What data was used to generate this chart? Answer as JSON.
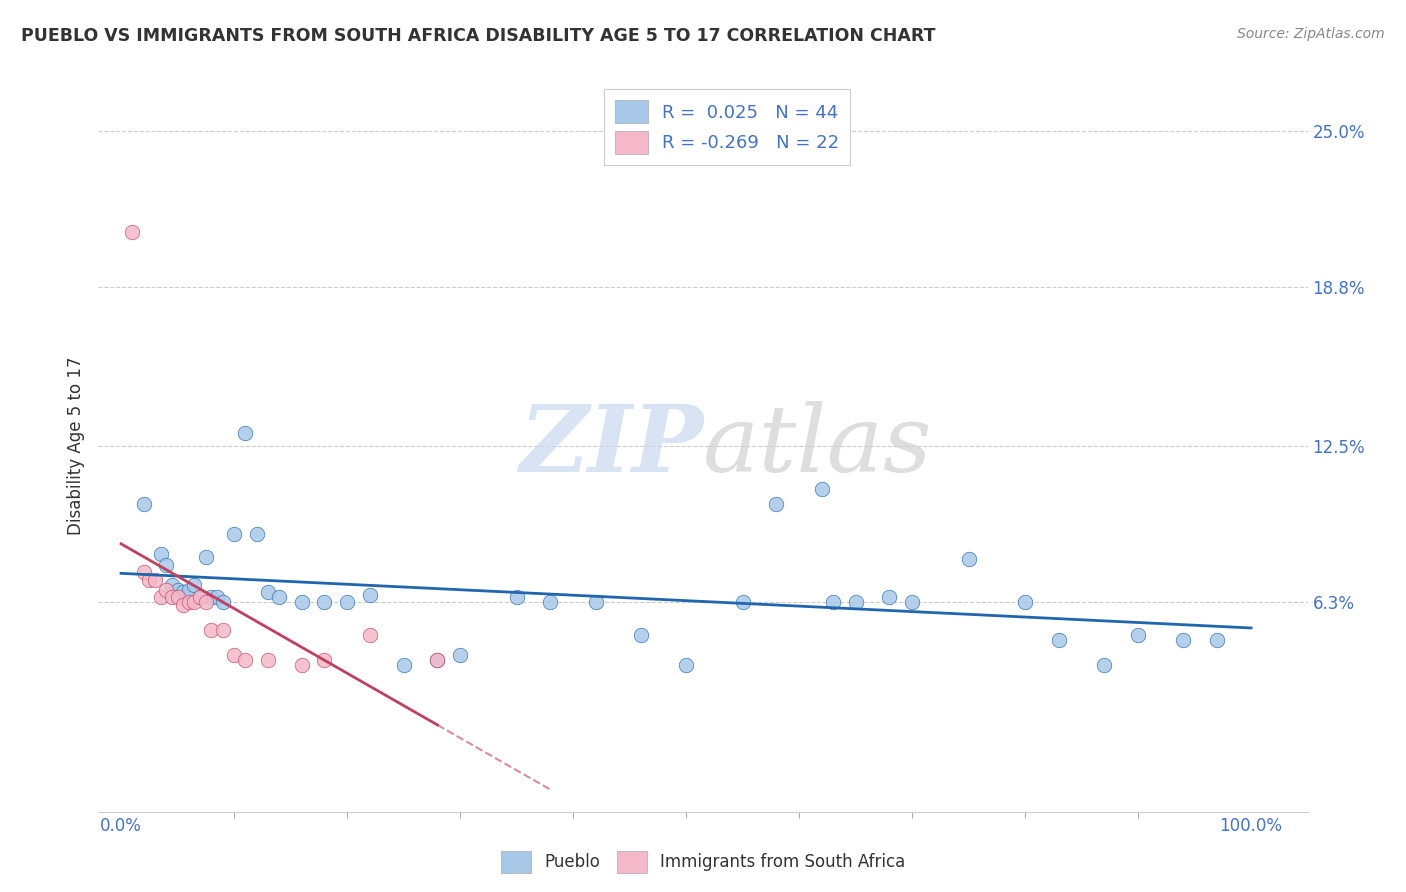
{
  "title": "PUEBLO VS IMMIGRANTS FROM SOUTH AFRICA DISABILITY AGE 5 TO 17 CORRELATION CHART",
  "source": "Source: ZipAtlas.com",
  "ylabel": "Disability Age 5 to 17",
  "yticks": [
    0.063,
    0.125,
    0.188,
    0.25
  ],
  "ytick_labels": [
    "6.3%",
    "12.5%",
    "18.8%",
    "25.0%"
  ],
  "xticks": [
    0.0,
    1.0
  ],
  "xtick_labels": [
    "0.0%",
    "100.0%"
  ],
  "blue_color": "#a8c8e8",
  "pink_color": "#f4b8c8",
  "blue_line_color": "#2166ac",
  "pink_line_color": "#c04060",
  "tick_label_color": "#4472c4",
  "watermark_text": "ZIPatlas",
  "legend_label1": "R =  0.025   N = 44",
  "legend_label2": "R = -0.269   N = 22",
  "bottom_legend1": "Pueblo",
  "bottom_legend2": "Immigrants from South Africa",
  "blue_x": [
    0.02,
    0.035,
    0.04,
    0.045,
    0.05,
    0.055,
    0.06,
    0.065,
    0.07,
    0.075,
    0.08,
    0.085,
    0.09,
    0.1,
    0.11,
    0.12,
    0.13,
    0.14,
    0.16,
    0.18,
    0.2,
    0.22,
    0.25,
    0.28,
    0.3,
    0.35,
    0.38,
    0.42,
    0.46,
    0.5,
    0.55,
    0.58,
    0.62,
    0.65,
    0.7,
    0.75,
    0.8,
    0.83,
    0.87,
    0.9,
    0.94,
    0.97,
    0.63,
    0.68
  ],
  "blue_y": [
    0.102,
    0.082,
    0.078,
    0.07,
    0.068,
    0.067,
    0.068,
    0.07,
    0.065,
    0.081,
    0.065,
    0.065,
    0.063,
    0.09,
    0.13,
    0.09,
    0.067,
    0.065,
    0.063,
    0.063,
    0.063,
    0.066,
    0.038,
    0.04,
    0.042,
    0.065,
    0.063,
    0.063,
    0.05,
    0.038,
    0.063,
    0.102,
    0.108,
    0.063,
    0.063,
    0.08,
    0.063,
    0.048,
    0.038,
    0.05,
    0.048,
    0.048,
    0.063,
    0.065
  ],
  "pink_x": [
    0.01,
    0.02,
    0.025,
    0.03,
    0.035,
    0.04,
    0.045,
    0.05,
    0.055,
    0.06,
    0.065,
    0.07,
    0.075,
    0.08,
    0.09,
    0.1,
    0.11,
    0.13,
    0.16,
    0.18,
    0.22,
    0.28
  ],
  "pink_y": [
    0.21,
    0.075,
    0.072,
    0.072,
    0.065,
    0.068,
    0.065,
    0.065,
    0.062,
    0.063,
    0.063,
    0.065,
    0.063,
    0.052,
    0.052,
    0.042,
    0.04,
    0.04,
    0.038,
    0.04,
    0.05,
    0.04
  ]
}
